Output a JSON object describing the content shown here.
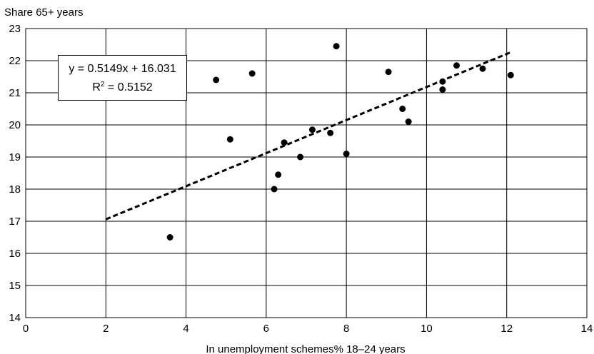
{
  "chart_data": {
    "type": "scatter",
    "title": "",
    "ylabel": "Share 65+ years",
    "xlabel": "In unemployment schemes% 18–24 years",
    "xlim": [
      0,
      14
    ],
    "ylim": [
      14,
      23
    ],
    "xticks": [
      "0",
      "2",
      "4",
      "6",
      "8",
      "10",
      "12",
      "14"
    ],
    "yticks": [
      "14",
      "15",
      "16",
      "17",
      "18",
      "19",
      "20",
      "21",
      "22",
      "23"
    ],
    "grid": true,
    "points": [
      {
        "x": 3.6,
        "y": 16.5
      },
      {
        "x": 4.75,
        "y": 21.4
      },
      {
        "x": 5.1,
        "y": 19.55
      },
      {
        "x": 5.65,
        "y": 21.6
      },
      {
        "x": 6.2,
        "y": 18.0
      },
      {
        "x": 6.3,
        "y": 18.45
      },
      {
        "x": 6.45,
        "y": 19.45
      },
      {
        "x": 6.85,
        "y": 19.0
      },
      {
        "x": 7.15,
        "y": 19.85
      },
      {
        "x": 7.6,
        "y": 19.75
      },
      {
        "x": 7.75,
        "y": 22.45
      },
      {
        "x": 8.0,
        "y": 19.1
      },
      {
        "x": 9.05,
        "y": 21.65
      },
      {
        "x": 9.4,
        "y": 20.5
      },
      {
        "x": 9.55,
        "y": 20.1
      },
      {
        "x": 10.4,
        "y": 21.35
      },
      {
        "x": 10.4,
        "y": 21.1
      },
      {
        "x": 10.75,
        "y": 21.85
      },
      {
        "x": 11.4,
        "y": 21.75
      },
      {
        "x": 12.1,
        "y": 21.55
      }
    ],
    "trendline": {
      "slope": 0.5149,
      "intercept": 16.031,
      "x_start": 2.0,
      "x_end": 12.1,
      "style": "dashed"
    },
    "annotation": {
      "line1": "y = 0.5149x + 16.031",
      "line2_prefix": "R",
      "line2_sup": "2",
      "line2_suffix": " = 0.5152"
    }
  }
}
